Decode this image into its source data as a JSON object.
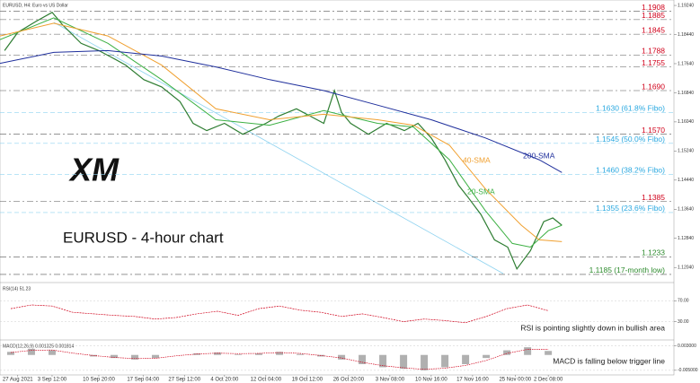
{
  "chart_data": [
    {
      "type": "line",
      "title": "EURUSD, H4: Euro vs US Dollar",
      "subtitle": "EURUSD - 4-hour chart",
      "logo": "XM",
      "xlim": [
        -0.26,
        16.04
      ],
      "xticks": [
        {
          "value": 0.17,
          "label": "27 Aug 2021"
        },
        {
          "value": 1,
          "label": "3 Sep 12:00"
        },
        {
          "value": 2.13,
          "label": "10 Sep 20:00"
        },
        {
          "value": 3.2,
          "label": "17 Sep 04:00"
        },
        {
          "value": 4.2,
          "label": "27 Sep 12:00"
        },
        {
          "value": 5.17,
          "label": "4 Oct 20:00"
        },
        {
          "value": 6.17,
          "label": "12 Oct 04:00"
        },
        {
          "value": 7.17,
          "label": "19 Oct 12:00"
        },
        {
          "value": 8.17,
          "label": "26 Oct 20:00"
        },
        {
          "value": 9.17,
          "label": "3 Nov 08:00"
        },
        {
          "value": 10.17,
          "label": "10 Nov 16:00"
        },
        {
          "value": 11.17,
          "label": "17 Nov 16:00"
        },
        {
          "value": 12.2,
          "label": "25 Nov 00:00"
        },
        {
          "value": 13,
          "label": "2 Dec 08:00"
        }
      ],
      "ylim": [
        1.117,
        1.1934
      ],
      "yticks": [
        {
          "value": 1.1924,
          "label": "1.19240"
        },
        {
          "value": 1.1844,
          "label": "1.18440"
        },
        {
          "value": 1.1764,
          "label": "1.17640"
        },
        {
          "value": 1.1684,
          "label": "1.16840"
        },
        {
          "value": 1.1604,
          "label": "1.16040"
        },
        {
          "value": 1.1524,
          "label": "1.15240"
        },
        {
          "value": 1.1444,
          "label": "1.14440"
        },
        {
          "value": 1.1364,
          "label": "1.13640"
        },
        {
          "value": 1.1284,
          "label": "1.12840"
        },
        {
          "value": 1.1204,
          "label": "1.12040"
        }
      ],
      "series": [
        {
          "color": "#2e7d32",
          "x": [
            -0.15,
            0.17,
            0.61,
            1.0,
            1.26,
            1.7,
            2.13,
            2.46,
            2.78,
            3.22,
            3.65,
            4.09,
            4.41,
            4.74,
            5.17,
            5.61,
            6.17,
            6.48,
            6.91,
            7.24,
            7.57,
            7.83,
            8.0,
            8.22,
            8.65,
            9.09,
            9.52,
            9.85,
            10.17,
            10.5,
            10.83,
            11.04,
            11.37,
            11.7,
            12.02,
            12.24,
            12.57,
            12.89,
            13.11,
            13.33
          ],
          "values": [
            1.18,
            1.185,
            1.188,
            1.1905,
            1.187,
            1.182,
            1.18,
            1.178,
            1.176,
            1.172,
            1.17,
            1.166,
            1.16,
            1.158,
            1.16,
            1.157,
            1.16,
            1.162,
            1.164,
            1.162,
            1.16,
            1.169,
            1.163,
            1.16,
            1.157,
            1.16,
            1.158,
            1.16,
            1.156,
            1.15,
            1.143,
            1.14,
            1.135,
            1.128,
            1.126,
            1.12,
            1.125,
            1.133,
            1.134,
            1.132
          ]
        },
        {
          "name": "20-SMA",
          "color": "#3cb043",
          "x": [
            -0.26,
            1.04,
            2.35,
            3.65,
            4.96,
            6.26,
            7.57,
            8.87,
            9.74,
            10.61,
            11.48,
            12.13,
            12.57,
            13.0,
            13.33
          ],
          "values": [
            1.183,
            1.189,
            1.182,
            1.172,
            1.161,
            1.1595,
            1.1635,
            1.16,
            1.159,
            1.15,
            1.136,
            1.127,
            1.126,
            1.1305,
            1.132
          ]
        },
        {
          "name": "40-SMA",
          "color": "#f0a030",
          "x": [
            -0.26,
            1.04,
            2.35,
            3.65,
            4.96,
            6.26,
            7.57,
            8.87,
            9.74,
            10.61,
            11.48,
            12.35,
            12.78,
            13.33
          ],
          "values": [
            1.184,
            1.1875,
            1.184,
            1.176,
            1.164,
            1.161,
            1.1625,
            1.161,
            1.1595,
            1.154,
            1.142,
            1.132,
            1.128,
            1.1275
          ]
        },
        {
          "name": "200-SMA",
          "color": "#1f2f9c",
          "x": [
            -0.26,
            1.04,
            2.35,
            3.65,
            4.96,
            6.26,
            7.57,
            8.87,
            10.17,
            11.48,
            12.78,
            13.33
          ],
          "values": [
            1.1765,
            1.1795,
            1.18,
            1.1785,
            1.1755,
            1.172,
            1.169,
            1.165,
            1.161,
            1.156,
            1.15,
            1.1465
          ]
        }
      ],
      "levels": [
        {
          "value": 1.1908,
          "label": "1.1908",
          "color": "#d0021b"
        },
        {
          "value": 1.1885,
          "label": "1.1885",
          "color": "#d0021b"
        },
        {
          "value": 1.1845,
          "label": "1.1845",
          "color": "#d0021b"
        },
        {
          "value": 1.1788,
          "label": "1.1788",
          "color": "#d0021b"
        },
        {
          "value": 1.1755,
          "label": "1.1755",
          "color": "#d0021b"
        },
        {
          "value": 1.169,
          "label": "1.1690",
          "color": "#d0021b"
        },
        {
          "value": 1.163,
          "label": "1.1630 (61.8% Fibo)",
          "color": "#29a8e0"
        },
        {
          "value": 1.157,
          "label": "1.1570",
          "color": "#d0021b"
        },
        {
          "value": 1.1545,
          "label": "1.1545 (50.0% Fibo)",
          "color": "#29a8e0"
        },
        {
          "value": 1.146,
          "label": "1.1460 (38.2% Fibo)",
          "color": "#29a8e0"
        },
        {
          "value": 1.1385,
          "label": "1.1385",
          "color": "#d0021b"
        },
        {
          "value": 1.1355,
          "label": "1.1355 (23.6% Fibo)",
          "color": "#29a8e0"
        },
        {
          "value": 1.1233,
          "label": "1.1233",
          "color": "#2e8b2e"
        },
        {
          "value": 1.1185,
          "label": "1.1185 (17-month low)",
          "color": "#2e8b2e"
        }
      ]
    },
    {
      "type": "line",
      "title": "RSI(14) 51.23",
      "annotation": "RSI is pointing slightly down in bullish area",
      "ylim": [
        0,
        100
      ],
      "yticks": [
        {
          "value": 70,
          "label": "70.00"
        },
        {
          "value": 30,
          "label": "30.00"
        }
      ],
      "series": [
        {
          "color": "#d0021b",
          "x": [
            0,
            0.5,
            1,
            1.5,
            2,
            2.5,
            3,
            3.5,
            4,
            4.5,
            5,
            5.5,
            6,
            6.5,
            7,
            7.5,
            8,
            8.5,
            9,
            9.5,
            10,
            10.5,
            11,
            11.5,
            12,
            12.5,
            13
          ],
          "values": [
            55,
            62,
            60,
            48,
            45,
            42,
            40,
            35,
            38,
            45,
            50,
            42,
            55,
            60,
            52,
            48,
            40,
            45,
            38,
            30,
            35,
            32,
            28,
            40,
            55,
            62,
            51
          ]
        }
      ]
    },
    {
      "type": "bar",
      "title": "MACD(12,26,9) 0.001325 0.001814",
      "annotation": "MACD is falling below trigger line",
      "ylim": [
        -0.0065,
        0.004
      ],
      "yticks": [
        {
          "value": 0.003,
          "label": "0.003000"
        },
        {
          "value": -0.005,
          "label": "-0.005000"
        }
      ],
      "series": [
        {
          "color": "#b0b0b0",
          "x": [
            0,
            0.5,
            1,
            1.5,
            2,
            2.5,
            3,
            3.5,
            4,
            4.5,
            5,
            5.5,
            6,
            6.5,
            7,
            7.5,
            8,
            8.5,
            9,
            9.5,
            10,
            10.5,
            11,
            11.5,
            12,
            12.5,
            13
          ],
          "values": [
            0.001,
            0.002,
            0.0015,
            0,
            -0.0005,
            -0.001,
            -0.0015,
            -0.001,
            0,
            0.0005,
            0.0008,
            0.0002,
            0.0005,
            0.001,
            0.0003,
            -0.0005,
            -0.0015,
            -0.003,
            -0.004,
            -0.0045,
            -0.005,
            -0.004,
            -0.003,
            -0.001,
            0.0015,
            0.0025,
            0.0013
          ]
        },
        {
          "color": "#d0021b",
          "x": [
            0,
            0.5,
            1,
            1.5,
            2,
            2.5,
            3,
            3.5,
            4,
            4.5,
            5,
            5.5,
            6,
            6.5,
            7,
            7.5,
            8,
            8.5,
            9,
            9.5,
            10,
            10.5,
            11,
            11.5,
            12,
            12.5,
            13
          ],
          "values": [
            0.0008,
            0.0015,
            0.0016,
            0.0006,
            -0.0002,
            -0.0008,
            -0.0012,
            -0.0011,
            -0.0003,
            0.0003,
            0.0006,
            0.0004,
            0.0005,
            0.0008,
            0.0005,
            -0.0002,
            -0.001,
            -0.0024,
            -0.0035,
            -0.0042,
            -0.0047,
            -0.0043,
            -0.0034,
            -0.0018,
            0.0005,
            0.0018,
            0.0018
          ]
        }
      ]
    }
  ]
}
